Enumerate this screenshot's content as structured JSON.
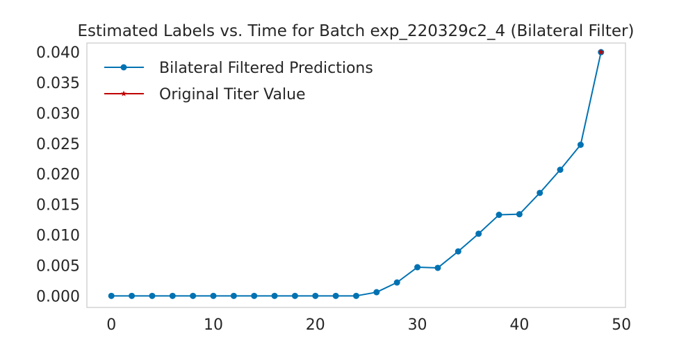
{
  "chart_data": {
    "type": "line",
    "title": "Estimated Labels vs. Time for Batch exp_220329c2_4 (Bilateral Filter)",
    "xlabel": "",
    "ylabel": "",
    "xlim": [
      -2.4,
      50.4
    ],
    "ylim": [
      -0.0019,
      0.0415
    ],
    "xticks": [
      0,
      10,
      20,
      30,
      40,
      50
    ],
    "xtick_labels": [
      "0",
      "10",
      "20",
      "30",
      "40",
      "50"
    ],
    "yticks": [
      0.0,
      0.005,
      0.01,
      0.015,
      0.02,
      0.025,
      0.03,
      0.035,
      0.04
    ],
    "ytick_labels": [
      "0.000",
      "0.005",
      "0.010",
      "0.015",
      "0.020",
      "0.025",
      "0.030",
      "0.035",
      "0.040"
    ],
    "grid": false,
    "legend_position": "top-left",
    "series": [
      {
        "name": "Bilateral Filtered Predictions",
        "color": "#0072b2",
        "marker": "circle",
        "x": [
          0,
          2,
          4,
          6,
          8,
          10,
          12,
          14,
          16,
          18,
          20,
          22,
          24,
          26,
          28,
          30,
          32,
          34,
          36,
          38,
          40,
          42,
          44,
          46,
          48
        ],
        "y": [
          0.0,
          0.0,
          0.0,
          0.0,
          0.0,
          0.0,
          0.0,
          0.0,
          0.0,
          0.0,
          0.0,
          0.0,
          0.0,
          0.0006,
          0.0022,
          0.0047,
          0.0046,
          0.0073,
          0.0102,
          0.0133,
          0.0134,
          0.0169,
          0.0207,
          0.0248,
          0.04
        ]
      },
      {
        "name": "Original Titer Value",
        "color": "#c00000",
        "marker": "star",
        "x": [
          48
        ],
        "y": [
          0.04
        ]
      }
    ]
  }
}
